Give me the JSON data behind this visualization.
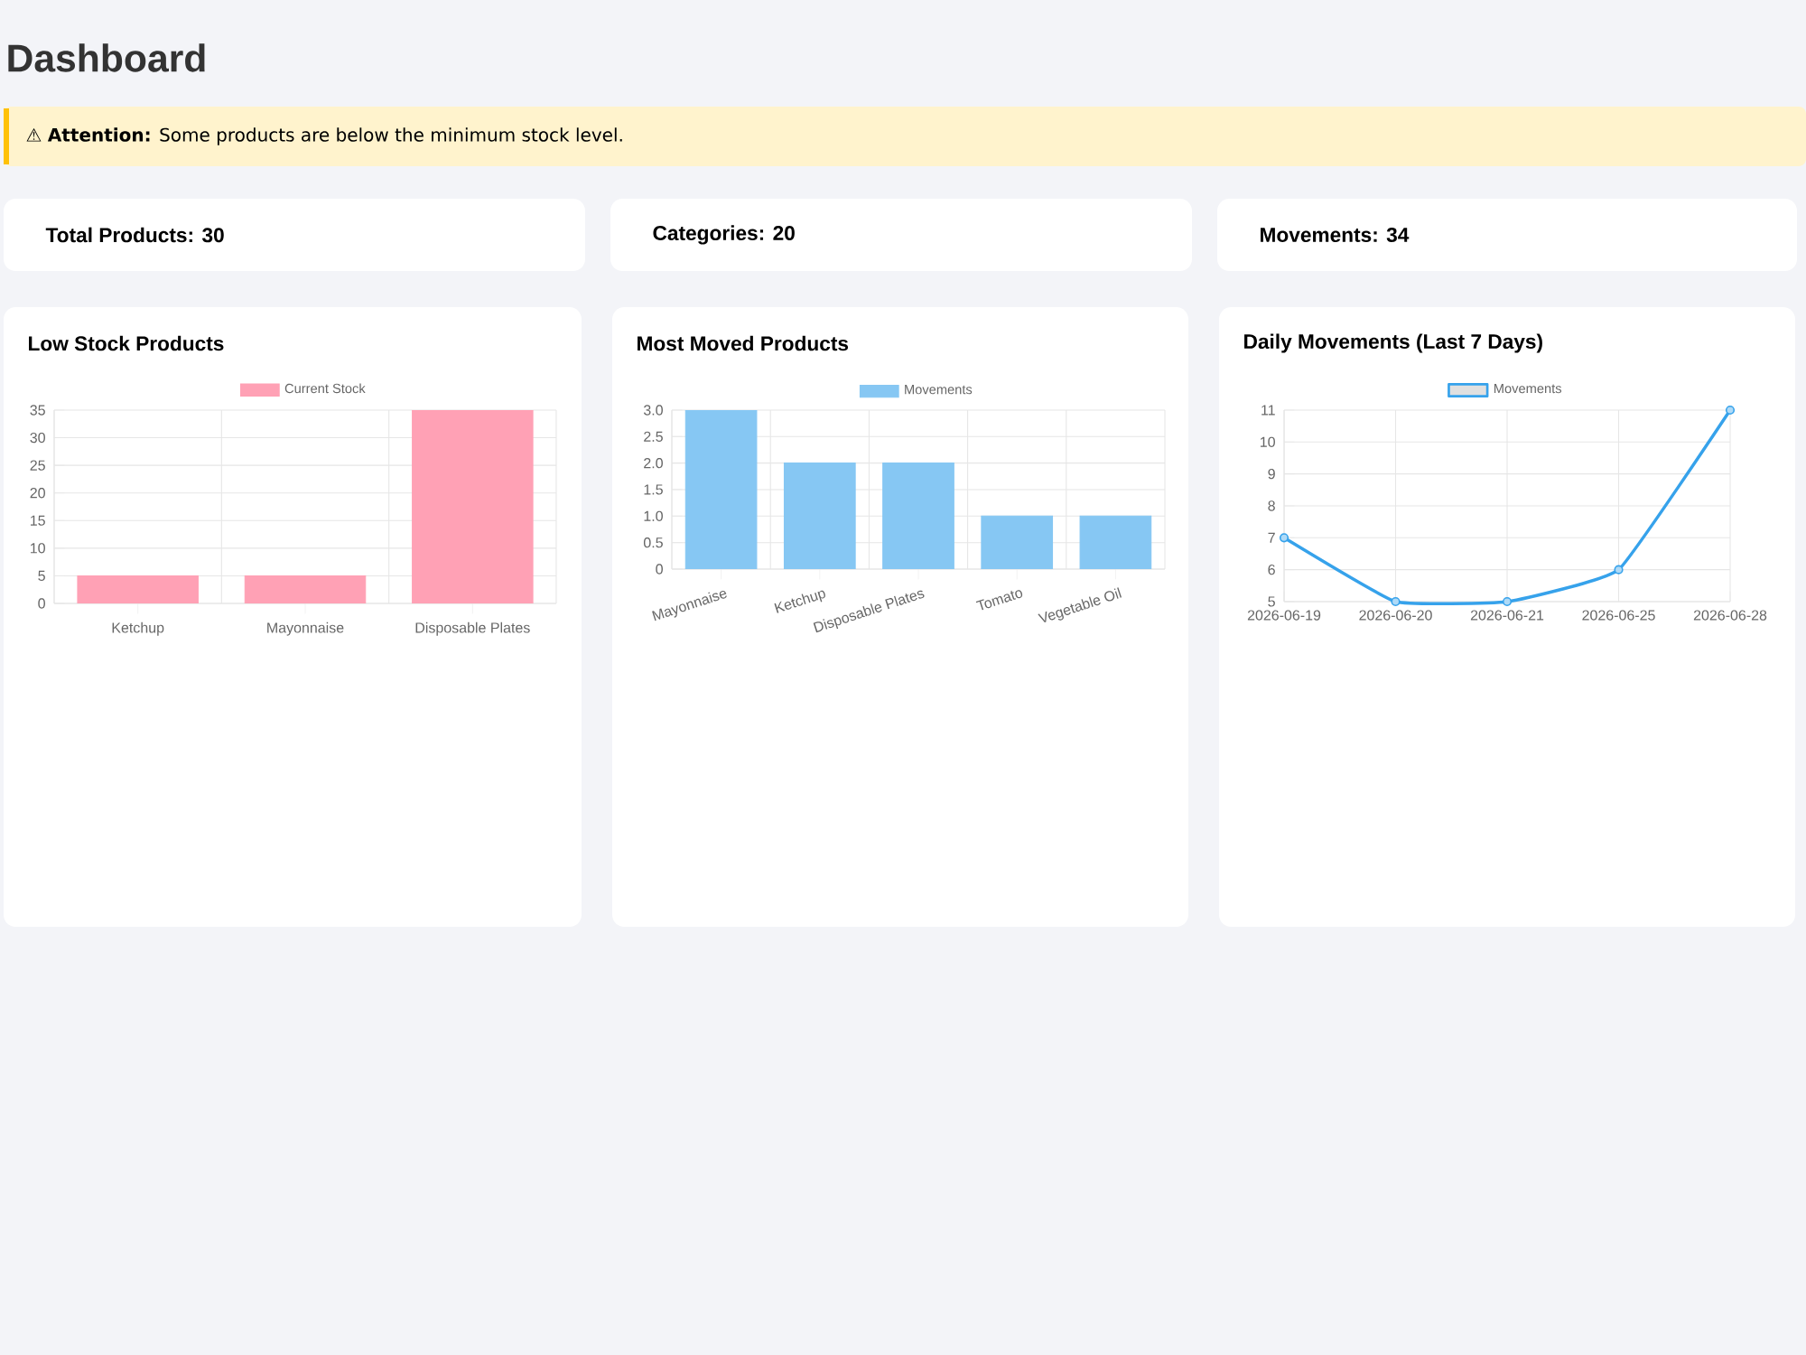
{
  "chart_data": [
    {
      "type": "other",
      "title": "Dashboard",
      "annotations": [
        "⚠ **Attention:** Some products are below the minimum stock level.",
        "Total Products: 30",
        "Categories: 20",
        "Movements: 34"
      ]
    },
    {
      "type": "bar",
      "title": "Low Stock Products",
      "categories": [
        "Ketchup",
        "Mayonnaise",
        "Disposable Plates"
      ],
      "series": [
        {
          "name": "Current Stock",
          "color": "#ffa1b5",
          "values": [
            5,
            5,
            35
          ]
        }
      ],
      "ylim": [
        0,
        35
      ],
      "yticks": [
        0,
        5,
        10,
        15,
        20,
        25,
        30,
        35
      ],
      "grid": true,
      "legend": "top"
    },
    {
      "type": "bar",
      "title": "Most Moved Products",
      "categories": [
        "Mayonnaise",
        "Ketchup",
        "Disposable Plates",
        "Tomato",
        "Vegetable Oil"
      ],
      "series": [
        {
          "name": "Movements",
          "color": "#86c7f3",
          "values": [
            3,
            2,
            2,
            1,
            1
          ]
        }
      ],
      "ylim": [
        0,
        3
      ],
      "yticks": [
        0,
        0.5,
        {
          "value": 1,
          "label": "1.0"
        },
        1.5,
        {
          "value": 2,
          "label": "2.0"
        },
        2.5,
        {
          "value": 3,
          "label": "3.0"
        }
      ],
      "grid": true,
      "legend": "top"
    },
    {
      "type": "line",
      "title": "Daily Movements (Last 7 Days)",
      "categories": [
        "2026-06-19",
        "2026-06-20",
        "2026-06-21",
        "2026-06-25",
        "2026-06-28"
      ],
      "series": [
        {
          "name": "Movements",
          "color": "#36a2eb",
          "values": [
            7,
            5,
            5,
            6,
            11
          ]
        }
      ],
      "ylim": [
        5,
        11
      ],
      "yticks": [
        5,
        6,
        7,
        8,
        9,
        10,
        11
      ],
      "grid": true,
      "legend": "top",
      "marker": "circle"
    }
  ]
}
